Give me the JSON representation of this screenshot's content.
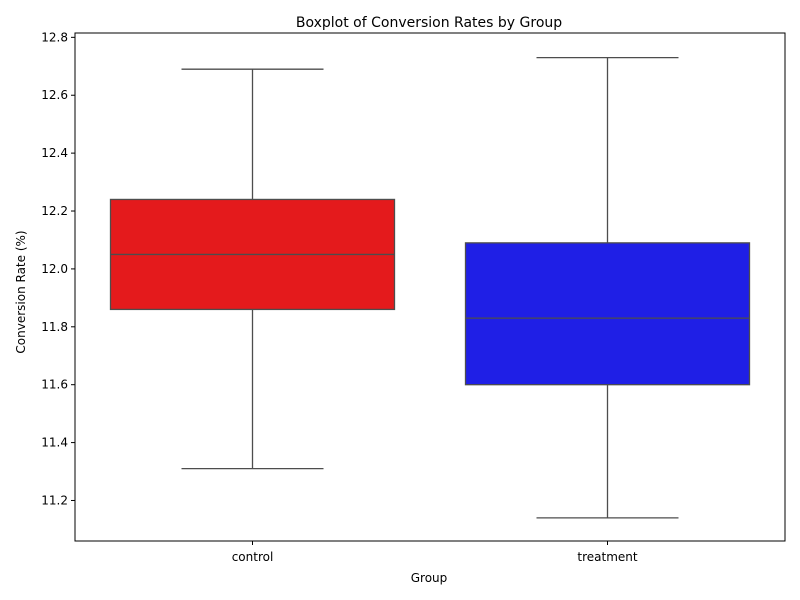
{
  "chart_data": {
    "type": "boxplot",
    "title": "Boxplot of Conversion Rates by Group",
    "xlabel": "Group",
    "ylabel": "Conversion Rate (%)",
    "ylim": [
      11.06,
      12.815
    ],
    "yticks": [
      11.2,
      11.4,
      11.6,
      11.8,
      12.0,
      12.2,
      12.4,
      12.6,
      12.8
    ],
    "ytick_labels": [
      "11.2",
      "11.4",
      "11.6",
      "11.8",
      "12.0",
      "12.2",
      "12.4",
      "12.6",
      "12.8"
    ],
    "grid": false,
    "categories": [
      "control",
      "treatment"
    ],
    "boxes": [
      {
        "whisker_low": 11.31,
        "q1": 11.86,
        "median": 12.05,
        "q3": 12.24,
        "whisker_high": 12.69,
        "color": "#e41a1c"
      },
      {
        "whisker_low": 11.14,
        "q1": 11.6,
        "median": 11.83,
        "q3": 12.09,
        "whisker_high": 12.73,
        "color": "#1f1fe6"
      }
    ]
  }
}
